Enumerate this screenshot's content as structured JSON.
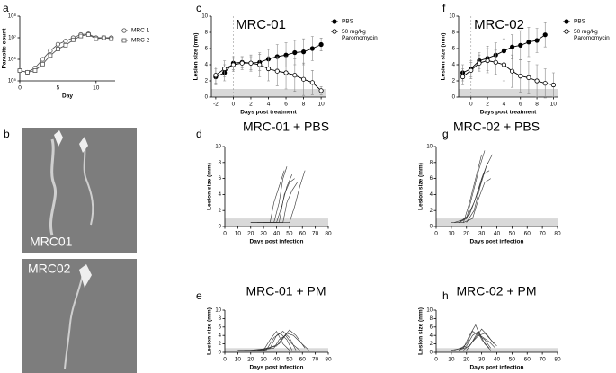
{
  "chart_data": [
    {
      "type": "line",
      "panel": "a",
      "xlabel": "Day",
      "ylabel": "Parasite count",
      "log_scale": true,
      "xlim": [
        0,
        12.5
      ],
      "xticks": [
        0,
        5,
        10
      ],
      "ylim": [
        100000,
        100000000
      ],
      "yticks": [
        {
          "value": 100000,
          "label": "10⁵"
        },
        {
          "value": 1000000,
          "label": "10⁶"
        },
        {
          "value": 10000000,
          "label": "10⁷"
        },
        {
          "value": 100000000,
          "label": "10⁸"
        }
      ],
      "legend": "right",
      "series": [
        {
          "name": "MRC 1",
          "color": "#555555",
          "marker": "open-circle",
          "x": [
            0,
            1,
            2,
            3,
            4,
            5,
            6,
            7,
            8,
            9,
            10,
            11,
            12
          ],
          "values": [
            300000,
            250000,
            400000,
            1000000,
            2500000,
            5000000,
            7000000,
            10000000,
            14000000,
            15000000,
            10000000,
            10000000,
            10000000
          ]
        },
        {
          "name": "MRC 2",
          "color": "#555555",
          "marker": "open-square",
          "x": [
            0,
            1,
            2,
            3,
            4,
            5,
            6,
            7,
            8,
            9,
            10,
            11,
            12
          ],
          "values": [
            300000,
            250000,
            300000,
            600000,
            1500000,
            3000000,
            4500000,
            8000000,
            12000000,
            14000000,
            9000000,
            10000000,
            9000000
          ]
        }
      ]
    },
    {
      "type": "line",
      "panel": "c",
      "title": "MRC-01",
      "xlabel": "Days post treatment",
      "ylabel": "Lesion size (mm)",
      "xlim": [
        -2.5,
        10.5
      ],
      "xticks": [
        -2,
        0,
        2,
        4,
        6,
        8,
        10
      ],
      "ylim": [
        0,
        10
      ],
      "yticks": [
        0,
        2,
        4,
        6,
        8,
        10
      ],
      "threshold_band": [
        0,
        1
      ],
      "vline": 0,
      "legend": "right",
      "series": [
        {
          "name": "PBS",
          "color": "#000000",
          "marker": "filled-circle",
          "x": [
            -2,
            -1,
            0,
            1,
            2,
            3,
            4,
            5,
            6,
            7,
            8,
            9,
            10
          ],
          "values": [
            2.5,
            3,
            4.2,
            4.3,
            4.2,
            4.3,
            4.7,
            5,
            5.2,
            5.5,
            5.6,
            6,
            6.5
          ],
          "errors": [
            1,
            1,
            0.8,
            0.7,
            0.8,
            1,
            1.2,
            1.5,
            1.5,
            1.5,
            1.6,
            1.5,
            0.8
          ]
        },
        {
          "name": "50 mg/kg Paromomycin",
          "color": "#000000",
          "marker": "open-circle",
          "x": [
            -2,
            -1,
            0,
            1,
            2,
            3,
            4,
            5,
            6,
            7,
            8,
            9,
            10
          ],
          "values": [
            2.7,
            3.5,
            4,
            4.2,
            4.2,
            4,
            3.5,
            3.2,
            3,
            2.7,
            2.2,
            1.8,
            0.8
          ],
          "errors": [
            1,
            1,
            0.8,
            0.8,
            1,
            1.5,
            1.5,
            1.8,
            2,
            2,
            2,
            1.5,
            0.5
          ]
        }
      ]
    },
    {
      "type": "line",
      "panel": "f",
      "title": "MRC-02",
      "xlabel": "Days post treatment",
      "ylabel": "Lesion size (mm)",
      "xlim": [
        -1.5,
        10.5
      ],
      "xticks": [
        0,
        2,
        4,
        6,
        8,
        10
      ],
      "ylim": [
        0,
        10
      ],
      "yticks": [
        0,
        2,
        4,
        6,
        8,
        10
      ],
      "threshold_band": [
        0,
        1
      ],
      "vline": 0,
      "legend": "right",
      "series": [
        {
          "name": "PBS",
          "color": "#000000",
          "marker": "filled-circle",
          "x": [
            -1,
            0,
            1,
            2,
            3,
            4,
            5,
            6,
            7,
            8,
            9
          ],
          "values": [
            3,
            3.5,
            4.5,
            4.8,
            5.2,
            5.7,
            6.2,
            6.4,
            6.8,
            7,
            7.7
          ],
          "errors": [
            1,
            1,
            1,
            1.5,
            1.5,
            1.5,
            1.5,
            1.8,
            1.8,
            1.5,
            1.5
          ]
        },
        {
          "name": "50 mg/kg Paromomycin",
          "color": "#000000",
          "marker": "open-circle",
          "x": [
            -1,
            0,
            1,
            2,
            3,
            4,
            5,
            6,
            7,
            8,
            9,
            10
          ],
          "values": [
            2.5,
            3.3,
            4.2,
            4.5,
            4.3,
            4,
            3.2,
            2.6,
            2.4,
            2,
            1.7,
            1.5
          ],
          "errors": [
            1,
            1,
            1,
            1.5,
            1.5,
            2,
            2,
            2,
            2,
            2,
            1.8,
            1.5
          ]
        }
      ]
    },
    {
      "type": "line",
      "panel": "d",
      "title": "MRC-01 + PBS",
      "xlabel": "Days post infection",
      "ylabel": "Lesion size (mm)",
      "xlim": [
        0,
        80
      ],
      "xticks": [
        0,
        10,
        20,
        30,
        40,
        50,
        60,
        70,
        80
      ],
      "ylim": [
        0,
        10
      ],
      "yticks": [
        0,
        2,
        4,
        6,
        8,
        10
      ],
      "threshold_band": [
        0,
        1
      ],
      "series": [
        {
          "color": "#333333",
          "x": [
            20,
            35,
            38,
            42,
            46
          ],
          "values": [
            0.5,
            0.5,
            3,
            5,
            7
          ]
        },
        {
          "color": "#333333",
          "x": [
            20,
            38,
            42,
            45,
            48
          ],
          "values": [
            0.5,
            0.5,
            3,
            6,
            7.5
          ]
        },
        {
          "color": "#333333",
          "x": [
            25,
            40,
            44,
            48,
            52
          ],
          "values": [
            0.5,
            0.5,
            2.5,
            5,
            6.5
          ]
        },
        {
          "color": "#333333",
          "x": [
            30,
            45,
            48,
            52,
            56
          ],
          "values": [
            0.5,
            0.5,
            3,
            4.5,
            5.5
          ]
        },
        {
          "color": "#333333",
          "x": [
            30,
            50,
            54,
            58,
            62
          ],
          "values": [
            0.5,
            0.5,
            2.5,
            5,
            7
          ]
        },
        {
          "color": "#333333",
          "x": [
            35,
            42,
            46,
            50,
            54
          ],
          "values": [
            0.5,
            0.5,
            4,
            5.5,
            6
          ]
        }
      ]
    },
    {
      "type": "line",
      "panel": "e",
      "title": "MRC-01 + PM",
      "xlabel": "Days post infection",
      "ylabel": "Lesion size (mm)",
      "xlim": [
        0,
        80
      ],
      "xticks": [
        0,
        10,
        20,
        30,
        40,
        50,
        60,
        70,
        80
      ],
      "ylim": [
        0,
        10
      ],
      "yticks": [
        0,
        2,
        4,
        6,
        8,
        10
      ],
      "threshold_band": [
        0,
        1
      ],
      "series": [
        {
          "color": "#333333",
          "x": [
            10,
            30,
            35,
            40,
            45,
            50
          ],
          "values": [
            0.5,
            0.5,
            3,
            5,
            2,
            0.5
          ]
        },
        {
          "color": "#333333",
          "x": [
            15,
            32,
            38,
            43,
            48,
            52
          ],
          "values": [
            0.5,
            0.5,
            3.5,
            4.5,
            3,
            0.5
          ]
        },
        {
          "color": "#333333",
          "x": [
            20,
            35,
            40,
            45,
            50,
            55
          ],
          "values": [
            0.5,
            1,
            4,
            5,
            3.5,
            0.5
          ]
        },
        {
          "color": "#333333",
          "x": [
            25,
            38,
            42,
            47,
            52,
            58
          ],
          "values": [
            0.5,
            1,
            3,
            4,
            2,
            0.5
          ]
        },
        {
          "color": "#333333",
          "x": [
            25,
            40,
            45,
            50,
            55,
            62
          ],
          "values": [
            0.5,
            1.5,
            3.5,
            5.3,
            4,
            1
          ]
        },
        {
          "color": "#333333",
          "x": [
            30,
            42,
            48,
            53,
            58,
            65
          ],
          "values": [
            0.5,
            2,
            4.5,
            4,
            2.5,
            0.5
          ]
        }
      ]
    },
    {
      "type": "line",
      "panel": "g",
      "title": "MRC-02 + PBS",
      "xlabel": "Days post infection",
      "ylabel": "Lesion size (mm)",
      "xlim": [
        0,
        80
      ],
      "xticks": [
        0,
        10,
        20,
        30,
        40,
        50,
        60,
        70,
        80
      ],
      "ylim": [
        0,
        10
      ],
      "yticks": [
        0,
        2,
        4,
        6,
        8,
        10
      ],
      "threshold_band": [
        0,
        1
      ],
      "series": [
        {
          "color": "#333333",
          "x": [
            10,
            18,
            22,
            26,
            30
          ],
          "values": [
            0.5,
            0.5,
            3,
            6,
            9
          ]
        },
        {
          "color": "#333333",
          "x": [
            12,
            20,
            24,
            28,
            32
          ],
          "values": [
            0.5,
            1,
            4,
            7,
            9.5
          ]
        },
        {
          "color": "#333333",
          "x": [
            15,
            20,
            25,
            30,
            34
          ],
          "values": [
            0.5,
            1,
            3,
            6,
            8
          ]
        },
        {
          "color": "#333333",
          "x": [
            15,
            22,
            27,
            31,
            35
          ],
          "values": [
            0.5,
            1.5,
            4,
            6.5,
            7
          ]
        },
        {
          "color": "#333333",
          "x": [
            18,
            24,
            28,
            32,
            36
          ],
          "values": [
            0.5,
            1,
            3.5,
            5.5,
            6
          ]
        },
        {
          "color": "#333333",
          "x": [
            20,
            25,
            29,
            33,
            37
          ],
          "values": [
            0.5,
            2,
            5,
            7.5,
            9
          ]
        }
      ]
    },
    {
      "type": "line",
      "panel": "h",
      "title": "MRC-02 + PM",
      "xlabel": "Days post infection",
      "ylabel": "Lesion size (mm)",
      "xlim": [
        0,
        80
      ],
      "xticks": [
        0,
        10,
        20,
        30,
        40,
        50,
        60,
        70,
        80
      ],
      "ylim": [
        0,
        10
      ],
      "yticks": [
        0,
        2,
        4,
        6,
        8,
        10
      ],
      "threshold_band": [
        0,
        1
      ],
      "series": [
        {
          "color": "#333333",
          "x": [
            10,
            18,
            22,
            26,
            30,
            35
          ],
          "values": [
            0.5,
            1,
            4,
            6.5,
            3,
            1
          ]
        },
        {
          "color": "#333333",
          "x": [
            12,
            20,
            24,
            28,
            32,
            36
          ],
          "values": [
            0.5,
            1.5,
            4,
            5,
            2,
            0.5
          ]
        },
        {
          "color": "#333333",
          "x": [
            15,
            20,
            24,
            28,
            32,
            36
          ],
          "values": [
            0.5,
            2,
            5,
            4,
            3,
            1
          ]
        },
        {
          "color": "#333333",
          "x": [
            15,
            22,
            26,
            30,
            34,
            38
          ],
          "values": [
            0.5,
            1.5,
            3.5,
            5.5,
            4,
            2
          ]
        },
        {
          "color": "#333333",
          "x": [
            18,
            23,
            27,
            31,
            35,
            39
          ],
          "values": [
            0.5,
            2,
            4.5,
            3.5,
            2.5,
            1
          ]
        },
        {
          "color": "#333333",
          "x": [
            20,
            24,
            28,
            32,
            36,
            40
          ],
          "values": [
            0.5,
            2.5,
            4,
            4.5,
            3,
            1.5
          ]
        }
      ]
    }
  ],
  "figure_b": {
    "panel": "b",
    "images": [
      "MRC01",
      "MRC02"
    ]
  }
}
